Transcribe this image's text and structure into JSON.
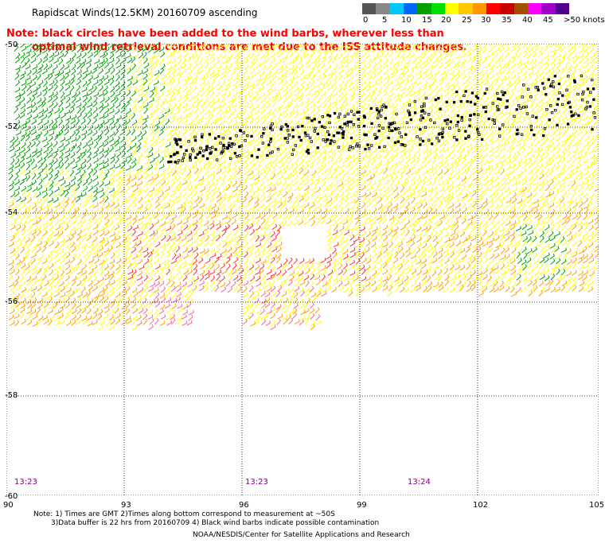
{
  "title": "Rapidscat Winds(12.5KM) 20160709 ascending",
  "speed_scale": {
    "labels": [
      "0",
      "5",
      "10",
      "15",
      "20",
      "25",
      "30",
      "35",
      "40",
      "45",
      ">50 knots"
    ],
    "colors": [
      "#555555",
      "#888888",
      "#00c8ff",
      "#0064ff",
      "#00a000",
      "#00e000",
      "#ffff00",
      "#ffc800",
      "#ff9600",
      "#ff0000",
      "#c80000",
      "#a05000",
      "#ff00ff",
      "#a000c8",
      "#500090"
    ]
  },
  "note_line1": "Note: black circles have been added to the wind barbs, wherever less than",
  "note_line2": "optimal wind retrieval conditions are met due to the ISS attitude changes.",
  "lat_labels": [
    "-50",
    "-52",
    "-54",
    "-56",
    "-58",
    "-60"
  ],
  "lon_labels": [
    "90",
    "93",
    "96",
    "99",
    "102",
    "105"
  ],
  "time_labels": [
    "13:23",
    "13:23",
    "13:24"
  ],
  "footnote_line1": "Note: 1) Times are GMT 2)Times along bottom correspond to measurement at ~50S",
  "footnote_line2": "3)Data buffer is 22 hrs from 20160709 4) Black wind barbs indicate possible contamination",
  "credit": "NOAA/NESDIS/Center for Satellite Applications and Research",
  "colors": {
    "note_text": "#ff0000",
    "time_text": "#800080",
    "barb_green": "#00a000",
    "barb_yellow": "#ffff00",
    "barb_orange": "#ffa000",
    "barb_red": "#ff3030",
    "barb_pink": "#ff60a0"
  }
}
